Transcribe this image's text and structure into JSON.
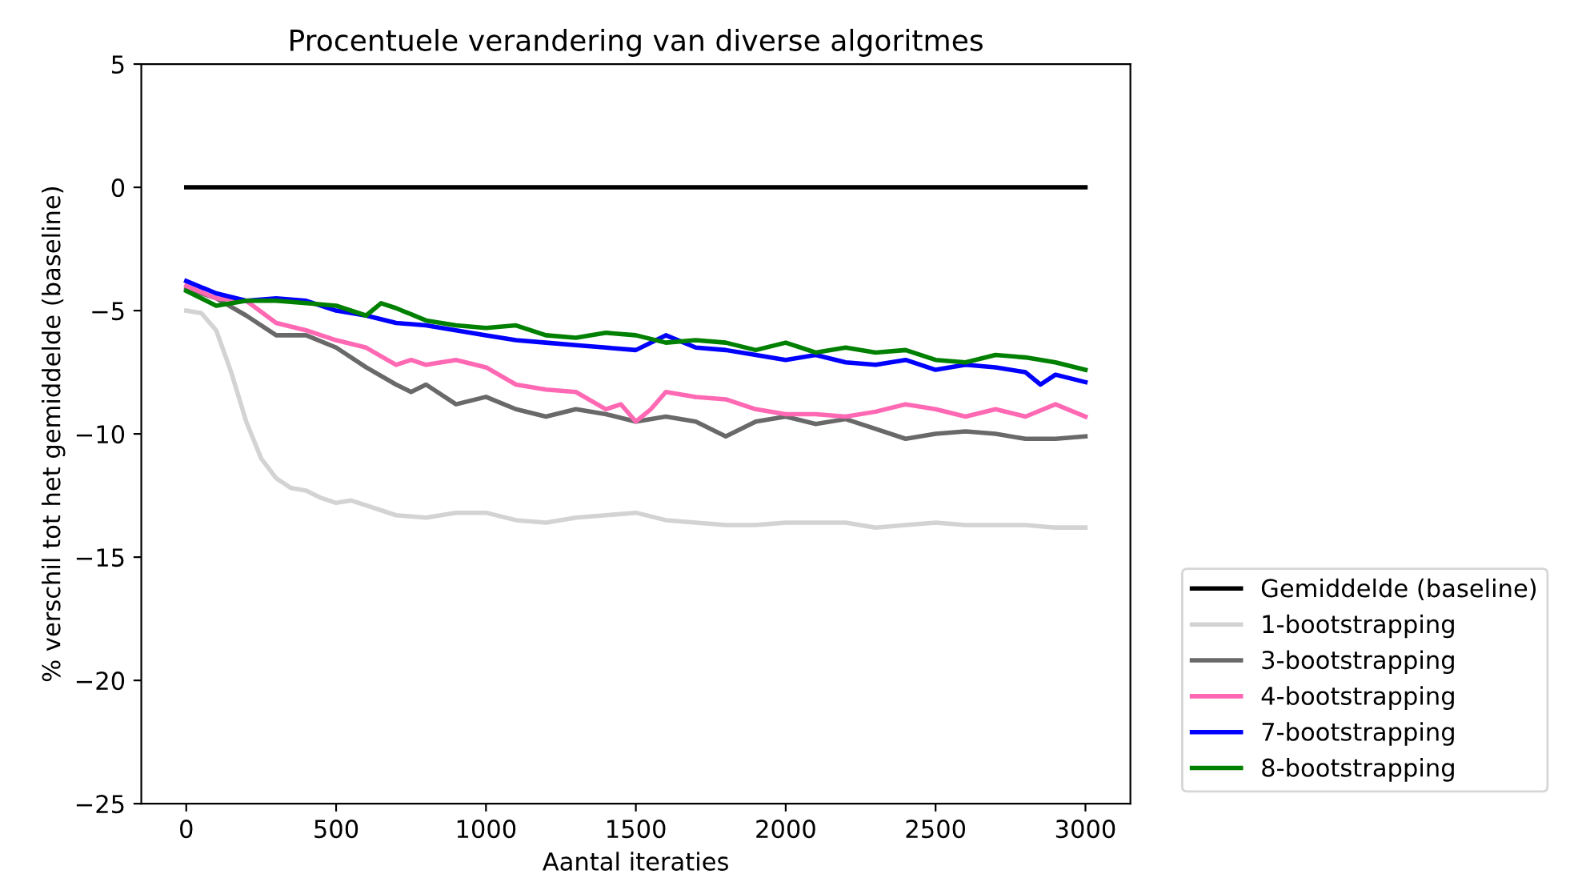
{
  "chart_data": {
    "type": "line",
    "title": "Procentuele verandering van diverse algoritmes",
    "xlabel": "Aantal iteraties",
    "ylabel": "% verschil tot het gemiddelde (baseline)",
    "xlim": [
      -150,
      3150
    ],
    "xticks": [
      0,
      500,
      1000,
      1500,
      2000,
      2500,
      3000
    ],
    "ylim": [
      -25,
      5
    ],
    "yticks": [
      {
        "value": -25,
        "label": "−25"
      },
      {
        "value": -20,
        "label": "−20"
      },
      {
        "value": -15,
        "label": "−15"
      },
      {
        "value": -10,
        "label": "−10"
      },
      {
        "value": -5,
        "label": "−5"
      },
      0,
      5
    ],
    "grid": false,
    "legend": "bottom right",
    "marker": "none",
    "line_style": "solid",
    "series": [
      {
        "name": "Gemiddelde (baseline)",
        "color": "#000000",
        "x": [
          0,
          3000
        ],
        "values": [
          0,
          0
        ]
      },
      {
        "name": "1-bootstrapping",
        "color": "#d3d3d3",
        "x": [
          0,
          50,
          100,
          150,
          200,
          250,
          300,
          350,
          400,
          450,
          500,
          550,
          600,
          700,
          800,
          900,
          1000,
          1100,
          1200,
          1300,
          1400,
          1500,
          1600,
          1700,
          1800,
          1900,
          2000,
          2100,
          2200,
          2300,
          2400,
          2500,
          2600,
          2700,
          2800,
          2900,
          3000
        ],
        "values": [
          -5,
          -5.1,
          -5.8,
          -7.5,
          -9.5,
          -11,
          -11.8,
          -12.2,
          -12.3,
          -12.6,
          -12.8,
          -12.7,
          -12.9,
          -13.3,
          -13.4,
          -13.2,
          -13.2,
          -13.5,
          -13.6,
          -13.4,
          -13.3,
          -13.2,
          -13.5,
          -13.6,
          -13.7,
          -13.7,
          -13.6,
          -13.6,
          -13.6,
          -13.8,
          -13.7,
          -13.6,
          -13.7,
          -13.7,
          -13.7,
          -13.8,
          -13.8
        ]
      },
      {
        "name": "3-bootstrapping",
        "color": "#696969",
        "x": [
          0,
          100,
          200,
          300,
          400,
          500,
          600,
          700,
          750,
          800,
          900,
          1000,
          1100,
          1200,
          1300,
          1400,
          1500,
          1600,
          1700,
          1800,
          1900,
          2000,
          2100,
          2200,
          2300,
          2400,
          2500,
          2600,
          2700,
          2800,
          2900,
          3000
        ],
        "values": [
          -4.1,
          -4.5,
          -5.2,
          -6.0,
          -6.0,
          -6.5,
          -7.3,
          -8.0,
          -8.3,
          -8.0,
          -8.8,
          -8.5,
          -9.0,
          -9.3,
          -9.0,
          -9.2,
          -9.5,
          -9.3,
          -9.5,
          -10.1,
          -9.5,
          -9.3,
          -9.6,
          -9.4,
          -9.8,
          -10.2,
          -10.0,
          -9.9,
          -10.0,
          -10.2,
          -10.2,
          -10.1
        ]
      },
      {
        "name": "4-bootstrapping",
        "color": "#ff69b4",
        "x": [
          0,
          100,
          200,
          300,
          400,
          500,
          600,
          700,
          750,
          800,
          900,
          1000,
          1100,
          1200,
          1300,
          1400,
          1450,
          1500,
          1550,
          1600,
          1700,
          1800,
          1900,
          2000,
          2100,
          2200,
          2300,
          2400,
          2500,
          2600,
          2700,
          2800,
          2900,
          3000
        ],
        "values": [
          -4.0,
          -4.5,
          -4.6,
          -5.5,
          -5.8,
          -6.2,
          -6.5,
          -7.2,
          -7.0,
          -7.2,
          -7.0,
          -7.3,
          -8.0,
          -8.2,
          -8.3,
          -9.0,
          -8.8,
          -9.5,
          -9.0,
          -8.3,
          -8.5,
          -8.6,
          -9.0,
          -9.2,
          -9.2,
          -9.3,
          -9.1,
          -8.8,
          -9.0,
          -9.3,
          -9.0,
          -9.3,
          -8.8,
          -9.3
        ]
      },
      {
        "name": "7-bootstrapping",
        "color": "#0000ff",
        "x": [
          0,
          100,
          200,
          300,
          400,
          500,
          600,
          700,
          800,
          900,
          1000,
          1100,
          1200,
          1300,
          1400,
          1500,
          1600,
          1700,
          1800,
          1900,
          2000,
          2100,
          2200,
          2300,
          2400,
          2500,
          2600,
          2700,
          2800,
          2850,
          2900,
          3000
        ],
        "values": [
          -3.8,
          -4.3,
          -4.6,
          -4.5,
          -4.6,
          -5.0,
          -5.2,
          -5.5,
          -5.6,
          -5.8,
          -6.0,
          -6.2,
          -6.3,
          -6.4,
          -6.5,
          -6.6,
          -6.0,
          -6.5,
          -6.6,
          -6.8,
          -7.0,
          -6.8,
          -7.1,
          -7.2,
          -7.0,
          -7.4,
          -7.2,
          -7.3,
          -7.5,
          -8.0,
          -7.6,
          -7.9
        ]
      },
      {
        "name": "8-bootstrapping",
        "color": "#008000",
        "x": [
          0,
          100,
          200,
          300,
          400,
          500,
          600,
          650,
          700,
          800,
          900,
          1000,
          1100,
          1200,
          1300,
          1400,
          1500,
          1600,
          1700,
          1800,
          1900,
          2000,
          2100,
          2200,
          2300,
          2400,
          2500,
          2600,
          2700,
          2800,
          2900,
          3000
        ],
        "values": [
          -4.2,
          -4.8,
          -4.6,
          -4.6,
          -4.7,
          -4.8,
          -5.2,
          -4.7,
          -4.9,
          -5.4,
          -5.6,
          -5.7,
          -5.6,
          -6.0,
          -6.1,
          -5.9,
          -6.0,
          -6.3,
          -6.2,
          -6.3,
          -6.6,
          -6.3,
          -6.7,
          -6.5,
          -6.7,
          -6.6,
          -7.0,
          -7.1,
          -6.8,
          -6.9,
          -7.1,
          -7.4
        ]
      }
    ]
  }
}
